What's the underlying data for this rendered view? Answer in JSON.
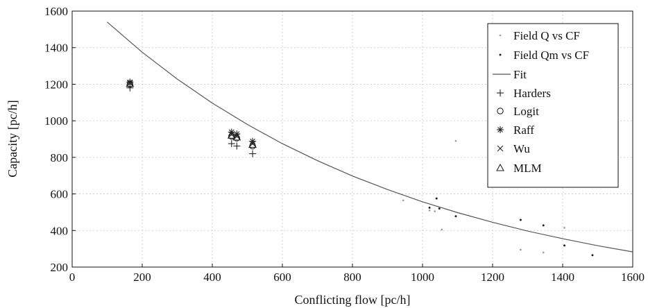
{
  "chart_data": {
    "type": "scatter",
    "xlabel": "Conflicting flow [pc/h]",
    "ylabel": "Capacity [pc/h]",
    "xlim": [
      0,
      1600
    ],
    "ylim": [
      200,
      1600
    ],
    "xticks": [
      "0",
      "200",
      "400",
      "600",
      "800",
      "1000",
      "1200",
      "1400",
      "1600"
    ],
    "yticks": [
      "200",
      "400",
      "600",
      "800",
      "1000",
      "1200",
      "1400",
      "1600"
    ],
    "grid": true,
    "legend_position": "top-right",
    "legend": [
      "Field Q vs CF",
      "Field Qm vs CF",
      "Fit",
      "Harders",
      "Logit",
      "Raff",
      "Wu",
      "MLM"
    ],
    "series": [
      {
        "name": "Field Q vs CF",
        "marker": "small-grey-dot",
        "points": [
          [
            945,
            565
          ],
          [
            1020,
            510
          ],
          [
            1035,
            505
          ],
          [
            1055,
            405
          ],
          [
            1095,
            890
          ],
          [
            1280,
            295
          ],
          [
            1345,
            280
          ],
          [
            1405,
            415
          ]
        ]
      },
      {
        "name": "Field Qm vs CF",
        "marker": "dot",
        "points": [
          [
            1020,
            525
          ],
          [
            1040,
            575
          ],
          [
            1048,
            520
          ],
          [
            1095,
            478
          ],
          [
            1280,
            458
          ],
          [
            1345,
            428
          ],
          [
            1405,
            318
          ],
          [
            1485,
            265
          ]
        ]
      },
      {
        "name": "Fit",
        "marker": "line",
        "points": [
          [
            100,
            1540
          ],
          [
            200,
            1375
          ],
          [
            300,
            1228
          ],
          [
            400,
            1097
          ],
          [
            500,
            980
          ],
          [
            600,
            875
          ],
          [
            700,
            782
          ],
          [
            800,
            698
          ],
          [
            900,
            624
          ],
          [
            1000,
            557
          ],
          [
            1100,
            498
          ],
          [
            1200,
            445
          ],
          [
            1300,
            397
          ],
          [
            1400,
            355
          ],
          [
            1500,
            317
          ],
          [
            1600,
            283
          ]
        ]
      },
      {
        "name": "Harders",
        "marker": "plus",
        "points": [
          [
            165,
            1180
          ],
          [
            455,
            875
          ],
          [
            470,
            862
          ],
          [
            515,
            820
          ]
        ]
      },
      {
        "name": "Logit",
        "marker": "circle",
        "points": [
          [
            165,
            1200
          ],
          [
            455,
            915
          ],
          [
            470,
            905
          ],
          [
            515,
            862
          ]
        ]
      },
      {
        "name": "Raff",
        "marker": "asterisk",
        "points": [
          [
            165,
            1212
          ],
          [
            455,
            938
          ],
          [
            470,
            928
          ],
          [
            515,
            888
          ]
        ]
      },
      {
        "name": "Wu",
        "marker": "x",
        "points": [
          [
            165,
            1205
          ],
          [
            455,
            925
          ],
          [
            470,
            915
          ],
          [
            515,
            875
          ]
        ]
      },
      {
        "name": "MLM",
        "marker": "triangle",
        "points": [
          [
            165,
            1203
          ],
          [
            455,
            920
          ],
          [
            470,
            910
          ],
          [
            515,
            870
          ]
        ]
      }
    ]
  }
}
